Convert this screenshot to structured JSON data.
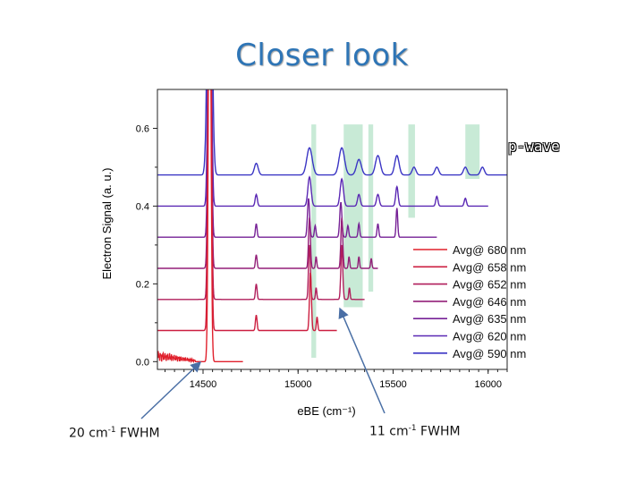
{
  "slide": {
    "title": "Closer look",
    "annotation_left": {
      "prefix": "20 cm",
      "sup": "-1",
      "suffix": " FWHM"
    },
    "annotation_right": {
      "prefix": "11 cm",
      "sup": "-1",
      "suffix": " FWHM"
    },
    "pwave_label": "p-wave"
  },
  "chart_data": {
    "type": "line",
    "title": "",
    "xlabel": "eBE (cm⁻¹)",
    "ylabel": "Electron Signal (a. u.)",
    "xlim": [
      14260,
      16100
    ],
    "ylim": [
      -0.02,
      0.7
    ],
    "xticks": [
      14500,
      15000,
      15500,
      16000
    ],
    "yticks": [
      0.0,
      0.2,
      0.4,
      0.6
    ],
    "ytick_labels": [
      "0.0",
      "0.2",
      "0.4",
      "0.6"
    ],
    "grid": false,
    "legend_position": "bottom-right",
    "highlight_bands": [
      {
        "x": [
          15070,
          15095
        ],
        "y": [
          0.01,
          0.61
        ],
        "color": "#c8ead6"
      },
      {
        "x": [
          15240,
          15340
        ],
        "y": [
          0.14,
          0.61
        ],
        "color": "#c8ead6"
      },
      {
        "x": [
          15370,
          15395
        ],
        "y": [
          0.18,
          0.61
        ],
        "color": "#c8ead6"
      },
      {
        "x": [
          15580,
          15615
        ],
        "y": [
          0.37,
          0.61
        ],
        "color": "#c8ead6"
      },
      {
        "x": [
          15880,
          15955
        ],
        "y": [
          0.47,
          0.61
        ],
        "color": "#c8ead6"
      }
    ],
    "series": [
      {
        "name": "Avg@ 680 nm",
        "color": "#e0202c",
        "offset": 0.0,
        "xend": 14710,
        "noise": {
          "x": [
            14260,
            14460
          ],
          "amp": [
            0.03,
            0.005
          ]
        },
        "peaks": [
          {
            "x": 14535,
            "h": 1.3,
            "w": 9
          }
        ]
      },
      {
        "name": "Avg@ 658 nm",
        "color": "#cc1f40",
        "offset": 0.08,
        "xend": 15205,
        "peaks": [
          {
            "x": 14535,
            "h": 1.2,
            "w": 10
          },
          {
            "x": 14780,
            "h": 0.04,
            "w": 6
          },
          {
            "x": 15065,
            "h": 0.15,
            "w": 7
          },
          {
            "x": 15100,
            "h": 0.035,
            "w": 5
          }
        ]
      },
      {
        "name": "Avg@ 652 nm",
        "color": "#b01e5b",
        "offset": 0.16,
        "xend": 15350,
        "peaks": [
          {
            "x": 14535,
            "h": 1.15,
            "w": 10
          },
          {
            "x": 14780,
            "h": 0.04,
            "w": 6
          },
          {
            "x": 15060,
            "h": 0.14,
            "w": 7
          },
          {
            "x": 15095,
            "h": 0.03,
            "w": 5
          },
          {
            "x": 15230,
            "h": 0.14,
            "w": 7
          },
          {
            "x": 15270,
            "h": 0.03,
            "w": 5
          }
        ]
      },
      {
        "name": "Avg@ 646 nm",
        "color": "#931f78",
        "offset": 0.24,
        "xend": 15420,
        "peaks": [
          {
            "x": 14535,
            "h": 1.1,
            "w": 10
          },
          {
            "x": 14780,
            "h": 0.035,
            "w": 6
          },
          {
            "x": 15060,
            "h": 0.13,
            "w": 7
          },
          {
            "x": 15095,
            "h": 0.03,
            "w": 5
          },
          {
            "x": 15230,
            "h": 0.13,
            "w": 7
          },
          {
            "x": 15268,
            "h": 0.03,
            "w": 5
          },
          {
            "x": 15320,
            "h": 0.03,
            "w": 5
          },
          {
            "x": 15385,
            "h": 0.025,
            "w": 5
          }
        ]
      },
      {
        "name": "Avg@ 635 nm",
        "color": "#762196",
        "offset": 0.32,
        "xend": 15730,
        "peaks": [
          {
            "x": 14535,
            "h": 1.05,
            "w": 10
          },
          {
            "x": 14780,
            "h": 0.035,
            "w": 6
          },
          {
            "x": 15055,
            "h": 0.1,
            "w": 8
          },
          {
            "x": 15090,
            "h": 0.03,
            "w": 6
          },
          {
            "x": 15225,
            "h": 0.09,
            "w": 8
          },
          {
            "x": 15262,
            "h": 0.03,
            "w": 6
          },
          {
            "x": 15320,
            "h": 0.035,
            "w": 6
          },
          {
            "x": 15420,
            "h": 0.035,
            "w": 6
          },
          {
            "x": 15520,
            "h": 0.075,
            "w": 6
          }
        ]
      },
      {
        "name": "Avg@ 620 nm",
        "color": "#5a28b4",
        "offset": 0.4,
        "xend": 16000,
        "peaks": [
          {
            "x": 14535,
            "h": 1.0,
            "w": 11
          },
          {
            "x": 14780,
            "h": 0.03,
            "w": 8
          },
          {
            "x": 15060,
            "h": 0.075,
            "w": 12
          },
          {
            "x": 15230,
            "h": 0.07,
            "w": 12
          },
          {
            "x": 15320,
            "h": 0.03,
            "w": 10
          },
          {
            "x": 15420,
            "h": 0.03,
            "w": 10
          },
          {
            "x": 15520,
            "h": 0.05,
            "w": 9
          },
          {
            "x": 15730,
            "h": 0.025,
            "w": 8
          },
          {
            "x": 15880,
            "h": 0.02,
            "w": 8
          }
        ]
      },
      {
        "name": "Avg@ 590 nm",
        "color": "#3a35c4",
        "offset": 0.48,
        "xend": 16100,
        "peaks": [
          {
            "x": 14535,
            "h": 0.95,
            "w": 15
          },
          {
            "x": 14780,
            "h": 0.03,
            "w": 14
          },
          {
            "x": 15060,
            "h": 0.07,
            "w": 20
          },
          {
            "x": 15230,
            "h": 0.07,
            "w": 20
          },
          {
            "x": 15320,
            "h": 0.04,
            "w": 18
          },
          {
            "x": 15420,
            "h": 0.05,
            "w": 18
          },
          {
            "x": 15520,
            "h": 0.05,
            "w": 16
          },
          {
            "x": 15610,
            "h": 0.02,
            "w": 14
          },
          {
            "x": 15730,
            "h": 0.02,
            "w": 14
          },
          {
            "x": 15880,
            "h": 0.02,
            "w": 14
          },
          {
            "x": 15970,
            "h": 0.02,
            "w": 14
          }
        ]
      }
    ]
  }
}
